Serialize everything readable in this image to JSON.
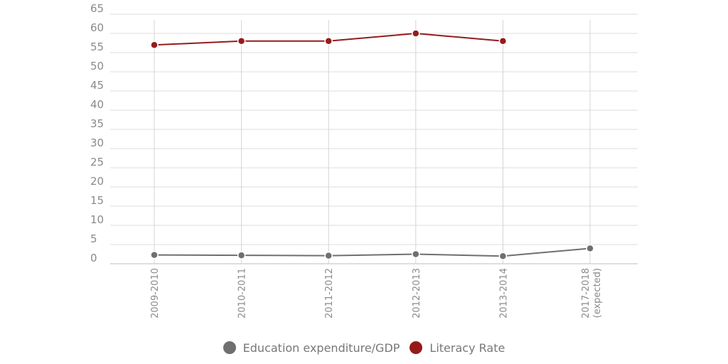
{
  "chart_data": {
    "type": "line",
    "categories": [
      "2009-2010",
      "2010-2011",
      "2011-2012",
      "2012-2013",
      "2013-2014",
      "2017-2018 (expected)"
    ],
    "category_lines": [
      [
        "2009-2010"
      ],
      [
        "2010-2011"
      ],
      [
        "2011-2012"
      ],
      [
        "2012-2013"
      ],
      [
        "2013-2014"
      ],
      [
        "2017-2018",
        "(expected)"
      ]
    ],
    "yticks": [
      0,
      5,
      10,
      15,
      20,
      25,
      30,
      35,
      40,
      45,
      50,
      55,
      60,
      65
    ],
    "ylim": [
      0,
      65
    ],
    "grid": true,
    "legend_position": "bottom",
    "series": [
      {
        "name": "Education expenditure/GDP",
        "color": "#6f6f6f",
        "values": [
          2.3,
          2.2,
          2.1,
          2.5,
          2.0,
          4.0
        ]
      },
      {
        "name": "Literacy Rate",
        "color": "#951b1b",
        "values": [
          57,
          58,
          58,
          60,
          58,
          null
        ]
      }
    ]
  }
}
